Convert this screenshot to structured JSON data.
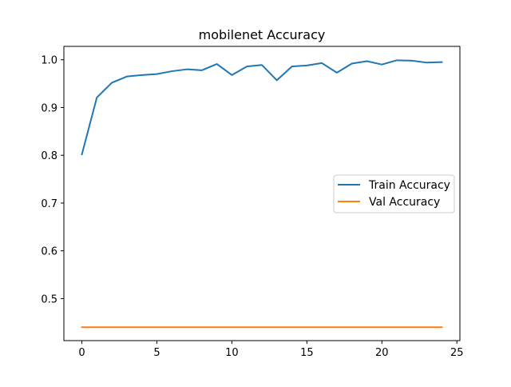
{
  "chart_data": {
    "type": "line",
    "title": "mobilenet Accuracy",
    "xlabel": "",
    "ylabel": "",
    "xlim": [
      -1.2,
      25.2
    ],
    "ylim": [
      0.412,
      1.028
    ],
    "x_ticks": [
      0,
      5,
      10,
      15,
      20,
      25
    ],
    "y_ticks": [
      0.5,
      0.6,
      0.7,
      0.8,
      0.9,
      1.0
    ],
    "x_tick_labels": [
      "0",
      "5",
      "10",
      "15",
      "20",
      "25"
    ],
    "y_tick_labels": [
      "0.5",
      "0.6",
      "0.7",
      "0.8",
      "0.9",
      "1.0"
    ],
    "grid": false,
    "legend_position": "center-right",
    "x": [
      0,
      1,
      2,
      3,
      4,
      5,
      6,
      7,
      8,
      9,
      10,
      11,
      12,
      13,
      14,
      15,
      16,
      17,
      18,
      19,
      20,
      21,
      22,
      23,
      24
    ],
    "series": [
      {
        "name": "Train Accuracy",
        "color": "#1f77b4",
        "values": [
          0.802,
          0.921,
          0.952,
          0.965,
          0.968,
          0.97,
          0.976,
          0.98,
          0.978,
          0.991,
          0.968,
          0.986,
          0.989,
          0.957,
          0.986,
          0.988,
          0.993,
          0.973,
          0.992,
          0.997,
          0.99,
          0.999,
          0.998,
          0.994,
          0.995
        ]
      },
      {
        "name": "Val Accuracy",
        "color": "#ff7f0e",
        "values": [
          0.44,
          0.44,
          0.44,
          0.44,
          0.44,
          0.44,
          0.44,
          0.44,
          0.44,
          0.44,
          0.44,
          0.44,
          0.44,
          0.44,
          0.44,
          0.44,
          0.44,
          0.44,
          0.44,
          0.44,
          0.44,
          0.44,
          0.44,
          0.44,
          0.44
        ]
      }
    ]
  }
}
